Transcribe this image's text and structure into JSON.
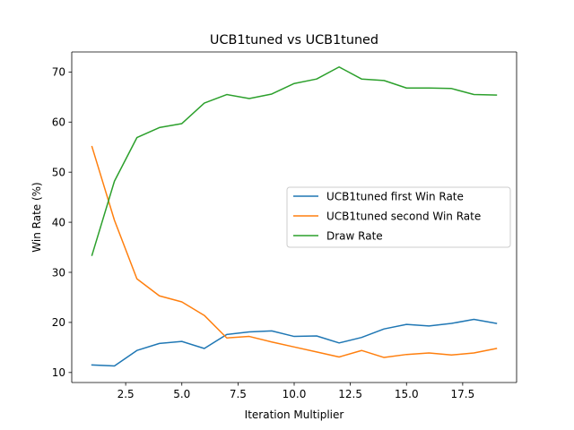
{
  "chart_data": {
    "type": "line",
    "title": "UCB1tuned vs UCB1tuned",
    "xlabel": "Iteration Multiplier",
    "ylabel": "Win Rate (%)",
    "xlim": [
      0.1,
      19.9
    ],
    "ylim": [
      8.0,
      74.0
    ],
    "xticks": [
      2.5,
      5.0,
      7.5,
      10.0,
      12.5,
      15.0,
      17.5
    ],
    "xtick_labels": [
      "2.5",
      "5.0",
      "7.5",
      "10.0",
      "12.5",
      "15.0",
      "17.5"
    ],
    "yticks": [
      10,
      20,
      30,
      40,
      50,
      60,
      70
    ],
    "ytick_labels": [
      "10",
      "20",
      "30",
      "40",
      "50",
      "60",
      "70"
    ],
    "grid": false,
    "legend_position": "center-right",
    "x": [
      1,
      2,
      3,
      4,
      5,
      6,
      7,
      8,
      9,
      10,
      11,
      12,
      13,
      14,
      15,
      16,
      17,
      18,
      19
    ],
    "series": [
      {
        "name": "UCB1tuned first Win Rate",
        "color": "#1f77b4",
        "values": [
          11.5,
          11.3,
          14.4,
          15.8,
          16.2,
          14.8,
          17.6,
          18.1,
          18.3,
          17.2,
          17.3,
          15.9,
          17.0,
          18.7,
          19.6,
          19.3,
          19.8,
          20.6,
          19.8
        ]
      },
      {
        "name": "UCB1tuned second Win Rate",
        "color": "#ff7f0e",
        "values": [
          55.1,
          40.4,
          28.7,
          25.3,
          24.1,
          21.4,
          16.9,
          17.2,
          16.1,
          15.1,
          14.1,
          13.1,
          14.4,
          13.0,
          13.6,
          13.9,
          13.5,
          13.9,
          14.8
        ]
      },
      {
        "name": "Draw Rate",
        "color": "#2ca02c",
        "values": [
          33.4,
          48.2,
          56.9,
          58.9,
          59.7,
          63.8,
          65.5,
          64.7,
          65.6,
          67.7,
          68.6,
          71.0,
          68.6,
          68.3,
          66.8,
          66.8,
          66.7,
          65.5,
          65.4
        ]
      }
    ]
  }
}
